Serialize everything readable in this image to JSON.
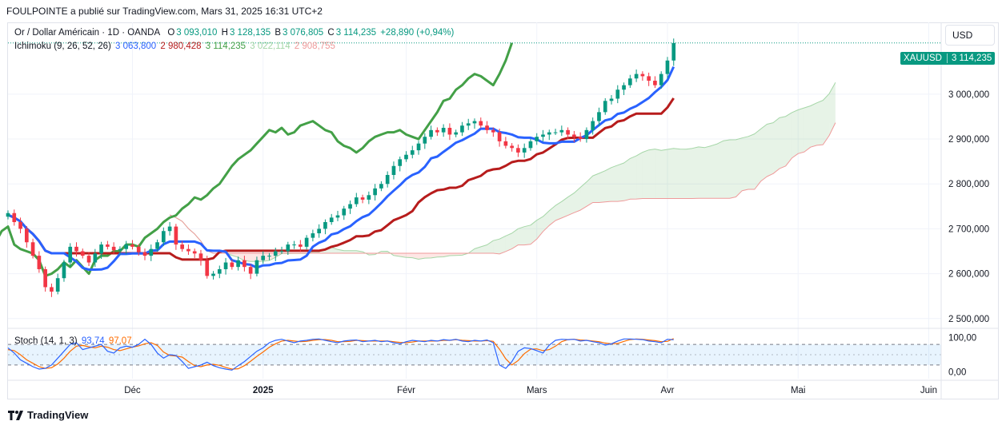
{
  "header": {
    "publisher": "FOULPOINTE a publié sur TradingView.com, Mars 31, 2025 16:31 UTC+2"
  },
  "legend_main": {
    "symbol": "Or / Dollar Américain · 1D · OANDA",
    "o_label": "O",
    "o_value": "3 093,010",
    "h_label": "H",
    "h_value": "3 128,135",
    "b_label": "B",
    "b_value": "3 076,805",
    "c_label": "C",
    "c_value": "3 114,235",
    "change": "+28,890 (+0,94%)"
  },
  "legend_ichimoku": {
    "name": "Ichimoku (9, 26, 52, 26)",
    "v1": "3 063,800",
    "v2": "2 980,428",
    "v3": "3 114,235",
    "v4": "3 022,114",
    "v5": "2 908,755"
  },
  "legend_stoch": {
    "name": "Stoch (14, 1, 3)",
    "k": "93,74",
    "d": "97,07"
  },
  "currency_button": "USD",
  "price_badge": {
    "symbol": "XAUUSD",
    "price": "3 114,235"
  },
  "brand": "TradingView",
  "colors": {
    "up": "#089981",
    "down": "#f23645",
    "tenkan": "#2962ff",
    "kijun": "#b71c1c",
    "chikou": "#43a047",
    "span_a": "#a5d6a7",
    "span_b": "#ef9a9a",
    "stoch_k": "#2962ff",
    "stoch_d": "#ff6d00"
  },
  "chart_data": {
    "type": "candlestick",
    "symbol": "XAUUSD",
    "timeframe": "1D",
    "y_ticks": [
      "3 000,000",
      "2 900,000",
      "2 800,000",
      "2 700,000",
      "2 600,000",
      "2 500,000"
    ],
    "y_tick_values": [
      3000,
      2900,
      2800,
      2700,
      2600,
      2500
    ],
    "ylim": [
      2480,
      3160
    ],
    "x_ticks": [
      "Déc",
      "2025",
      "Févr",
      "Mars",
      "Avr",
      "Mai",
      "Juin"
    ],
    "x_tick_days": [
      20,
      41,
      64,
      85,
      106,
      127,
      148
    ],
    "xlim": [
      0,
      150
    ],
    "last_close": 3114.235,
    "closes": [
      2735,
      2715,
      2700,
      2670,
      2640,
      2610,
      2570,
      2560,
      2590,
      2625,
      2660,
      2650,
      2640,
      2625,
      2645,
      2665,
      2660,
      2652,
      2655,
      2665,
      2660,
      2648,
      2640,
      2655,
      2670,
      2695,
      2705,
      2665,
      2655,
      2650,
      2645,
      2630,
      2595,
      2600,
      2610,
      2625,
      2615,
      2630,
      2615,
      2600,
      2630,
      2640,
      2640,
      2650,
      2650,
      2665,
      2665,
      2660,
      2680,
      2690,
      2700,
      2715,
      2725,
      2730,
      2745,
      2755,
      2770,
      2765,
      2775,
      2790,
      2800,
      2820,
      2840,
      2855,
      2865,
      2875,
      2890,
      2905,
      2920,
      2915,
      2925,
      2910,
      2915,
      2930,
      2935,
      2940,
      2930,
      2920,
      2915,
      2895,
      2885,
      2880,
      2870,
      2880,
      2895,
      2905,
      2910,
      2915,
      2915,
      2920,
      2910,
      2905,
      2900,
      2920,
      2940,
      2960,
      2985,
      2990,
      3010,
      3020,
      3035,
      3045,
      3040,
      3030,
      3020,
      3045,
      3075,
      3114
    ],
    "stoch_ylim": [
      -20,
      120
    ],
    "stoch_ticks": [
      "100,00",
      "0,00"
    ],
    "stoch_tick_values": [
      100,
      0
    ],
    "stoch_bands": [
      80,
      20
    ],
    "stoch_k": [
      70,
      55,
      35,
      25,
      15,
      8,
      10,
      20,
      40,
      60,
      80,
      85,
      65,
      70,
      75,
      80,
      60,
      55,
      70,
      75,
      72,
      80,
      95,
      80,
      55,
      40,
      50,
      48,
      30,
      10,
      15,
      20,
      28,
      18,
      12,
      8,
      5,
      18,
      30,
      45,
      60,
      70,
      85,
      92,
      95,
      90,
      85,
      90,
      92,
      95,
      96,
      92,
      88,
      85,
      90,
      92,
      93,
      88,
      90,
      92,
      88,
      90,
      85,
      82,
      88,
      92,
      90,
      88,
      92,
      90,
      94,
      92,
      95,
      90,
      88,
      92,
      90,
      93,
      85,
      20,
      10,
      30,
      60,
      70,
      68,
      62,
      55,
      78,
      92,
      95,
      94,
      95,
      90,
      92,
      88,
      85,
      78,
      82,
      90,
      96,
      96,
      95,
      94,
      90,
      88,
      85,
      95,
      93.74
    ],
    "stoch_d": [
      65,
      62,
      50,
      35,
      25,
      15,
      10,
      12,
      23,
      40,
      60,
      75,
      77,
      73,
      70,
      75,
      72,
      65,
      62,
      67,
      72,
      76,
      82,
      85,
      77,
      58,
      48,
      46,
      43,
      30,
      18,
      15,
      20,
      22,
      19,
      13,
      8,
      9,
      18,
      31,
      45,
      58,
      72,
      82,
      90,
      92,
      90,
      88,
      89,
      92,
      94,
      94,
      92,
      88,
      88,
      89,
      92,
      91,
      90,
      90,
      90,
      90,
      88,
      86,
      85,
      87,
      90,
      90,
      90,
      90,
      92,
      92,
      94,
      92,
      91,
      90,
      90,
      91,
      89,
      66,
      38,
      20,
      33,
      53,
      66,
      67,
      62,
      65,
      75,
      88,
      94,
      95,
      93,
      92,
      90,
      88,
      84,
      82,
      83,
      89,
      94,
      96,
      95,
      93,
      91,
      88,
      89,
      97.07
    ]
  }
}
